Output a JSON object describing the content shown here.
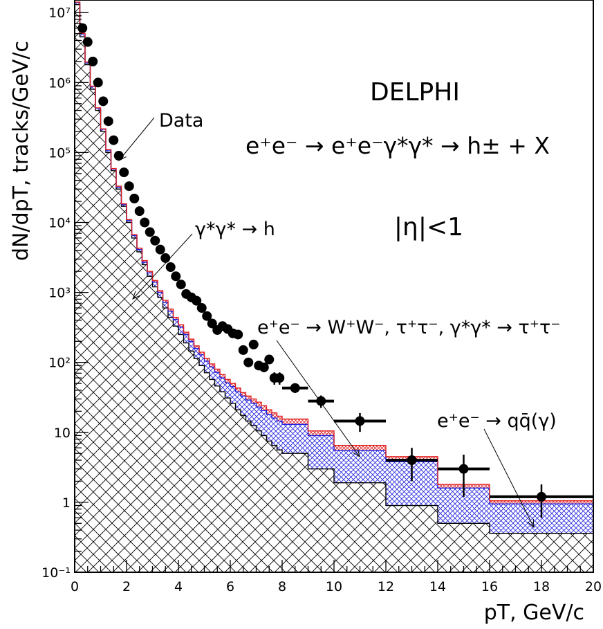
{
  "chart_data": {
    "type": "histogram",
    "experiment": "DELPHI",
    "process": "e⁺e⁻ → e⁺e⁻γ*γ* → h± + X",
    "cut": "|η|<1",
    "xlabel": "pT, GeV/c",
    "ylabel": "dN/dpT, tracks/GeV/c",
    "xlim": [
      0,
      20
    ],
    "ylim": [
      0.1,
      10000000
    ],
    "yscale": "log",
    "x_ticks": [
      0,
      2,
      4,
      6,
      8,
      10,
      12,
      14,
      16,
      18,
      20
    ],
    "y_ticks": [
      {
        "value": 0.1,
        "label": "10⁻¹"
      },
      {
        "value": 1,
        "label": "1"
      },
      {
        "value": 10,
        "label": "10"
      },
      {
        "value": 100,
        "label": "10²"
      },
      {
        "value": 1000,
        "label": "10³"
      },
      {
        "value": 10000,
        "label": "10⁴"
      },
      {
        "value": 100000,
        "label": "10⁵"
      },
      {
        "value": 1000000,
        "label": "10⁶"
      },
      {
        "value": 10000000,
        "label": "10⁷"
      }
    ],
    "bin_edges": [
      0,
      0.2,
      0.4,
      0.6,
      0.8,
      1.0,
      1.2,
      1.4,
      1.6,
      1.8,
      2.0,
      2.2,
      2.4,
      2.6,
      2.8,
      3.0,
      3.2,
      3.4,
      3.6,
      3.8,
      4.0,
      4.2,
      4.4,
      4.6,
      4.8,
      5.0,
      5.2,
      5.4,
      5.6,
      5.8,
      6.0,
      6.2,
      6.4,
      6.6,
      6.8,
      7.0,
      7.2,
      7.4,
      7.6,
      7.8,
      8.0,
      9.0,
      10.0,
      12.0,
      14.0,
      16.0,
      20.0
    ],
    "series": [
      {
        "name": "γ*γ* → h",
        "color": "#000000",
        "hatch": "cross",
        "values": [
          13000000,
          4500000,
          1800000,
          800000,
          400000,
          200000,
          100000,
          55000,
          30000,
          17000,
          10000,
          6000,
          3800,
          2500,
          1700,
          1200,
          850,
          600,
          440,
          330,
          250,
          190,
          145,
          113,
          90,
          71,
          57,
          46,
          38,
          31,
          26,
          21,
          17.5,
          14.5,
          12.5,
          10.5,
          9,
          7.5,
          6.5,
          5.6,
          5,
          3,
          1.9,
          0.9,
          0.5,
          0.36
        ]
      },
      {
        "name": "e⁺e⁻ → W⁺W⁻, τ⁺τ⁻, γ*γ* → τ⁺τ⁻",
        "color": "#2020e0",
        "hatch": "cross",
        "values": [
          14000000,
          5000000,
          1950000,
          880000,
          430000,
          215000,
          108000,
          58000,
          32000,
          18000,
          10700,
          6500,
          4100,
          2700,
          1900,
          1400,
          1000,
          720,
          540,
          410,
          320,
          250,
          200,
          158,
          128,
          104,
          86,
          72,
          60,
          51,
          45,
          38,
          33,
          29,
          26,
          23,
          20.5,
          18,
          16,
          14.5,
          13,
          9,
          5.5,
          3.8,
          1.6,
          0.95
        ]
      },
      {
        "name": "e⁺e⁻ → qq̄(γ)",
        "color": "#e02020",
        "hatch": "cross",
        "values": [
          14100000,
          5050000,
          1970000,
          890000,
          435000,
          218000,
          110000,
          59000,
          33000,
          18500,
          11000,
          6700,
          4300,
          2850,
          2000,
          1480,
          1060,
          770,
          580,
          440,
          345,
          270,
          215,
          172,
          140,
          114,
          95,
          80,
          67,
          57,
          50,
          43,
          37,
          33,
          30,
          27,
          24,
          21,
          19,
          17,
          15.5,
          10.5,
          6.5,
          4.5,
          1.8,
          1.05
        ]
      }
    ],
    "data_points": {
      "name": "Data",
      "x": [
        0.3,
        0.5,
        0.7,
        0.9,
        1.1,
        1.3,
        1.5,
        1.7,
        1.9,
        2.1,
        2.3,
        2.5,
        2.7,
        2.9,
        3.1,
        3.3,
        3.5,
        3.7,
        3.9,
        4.1,
        4.3,
        4.5,
        4.7,
        4.9,
        5.1,
        5.3,
        5.5,
        5.7,
        5.9,
        6.1,
        6.3,
        6.5,
        6.7,
        6.9,
        7.1,
        7.3,
        7.5,
        7.7,
        7.9,
        8.5,
        9.5,
        11,
        13,
        15,
        18
      ],
      "y": [
        6000000,
        3800000,
        2000000,
        1000000,
        540000,
        280000,
        150000,
        90000,
        52000,
        33000,
        22000,
        14500,
        10000,
        7300,
        5500,
        4100,
        3100,
        2300,
        1700,
        1300,
        950,
        850,
        760,
        600,
        460,
        360,
        290,
        330,
        300,
        260,
        250,
        150,
        100,
        180,
        90,
        85,
        110,
        60,
        60,
        43,
        28,
        14.5,
        4,
        3,
        1.2
      ],
      "x_err": [
        0.1,
        0.1,
        0.1,
        0.1,
        0.1,
        0.1,
        0.1,
        0.1,
        0.1,
        0.1,
        0.1,
        0.1,
        0.1,
        0.1,
        0.1,
        0.1,
        0.1,
        0.1,
        0.1,
        0.1,
        0.1,
        0.1,
        0.1,
        0.1,
        0.1,
        0.1,
        0.1,
        0.1,
        0.1,
        0.1,
        0.1,
        0.1,
        0.1,
        0.1,
        0.1,
        0.1,
        0.1,
        0.1,
        0.1,
        0.5,
        0.5,
        1,
        1,
        1,
        2
      ],
      "y_err_frac": [
        0.01,
        0.01,
        0.01,
        0.01,
        0.01,
        0.01,
        0.01,
        0.01,
        0.01,
        0.01,
        0.01,
        0.01,
        0.01,
        0.01,
        0.01,
        0.01,
        0.01,
        0.01,
        0.02,
        0.02,
        0.03,
        0.03,
        0.04,
        0.04,
        0.05,
        0.05,
        0.06,
        0.06,
        0.06,
        0.07,
        0.07,
        0.1,
        0.12,
        0.1,
        0.14,
        0.15,
        0.14,
        0.2,
        0.2,
        0.15,
        0.2,
        0.3,
        0.5,
        0.6,
        0.5
      ]
    },
    "annotations": {
      "title": "DELPHI",
      "process": "e⁺e⁻ → e⁺e⁻γ*γ* → h± + X",
      "eta_cut": "|η|<1",
      "data_label": "Data",
      "gg_label": "γ*γ* → h",
      "ww_label": "e⁺e⁻ → W⁺W⁻, τ⁺τ⁻, γ*γ* → τ⁺τ⁻",
      "qq_label": "e⁺e⁻ → qq̄(γ)"
    }
  }
}
